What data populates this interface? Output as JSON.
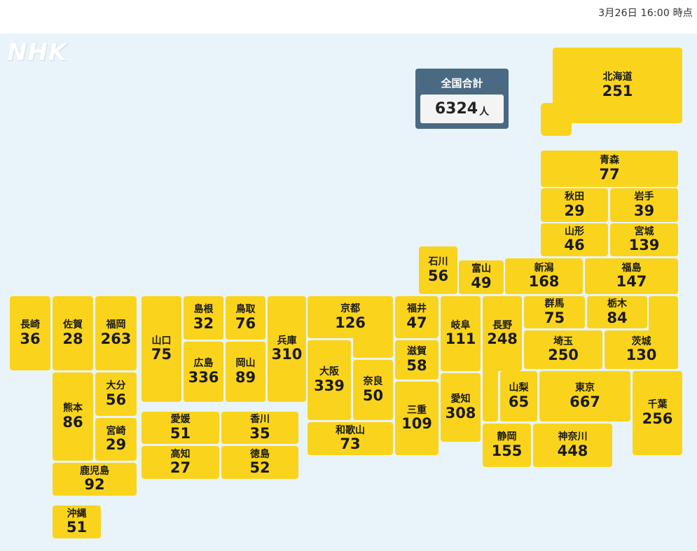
{
  "timestamp": "3月26日 16:00 時点",
  "logo": "NHK",
  "total": {
    "label": "全国合計",
    "value": "6324",
    "unit": "人"
  },
  "prefectures": [
    {
      "name": "北海道",
      "count": "251"
    },
    {
      "name": "青森",
      "count": "77"
    },
    {
      "name": "秋田",
      "count": "29"
    },
    {
      "name": "岩手",
      "count": "39"
    },
    {
      "name": "山形",
      "count": "46"
    },
    {
      "name": "宮城",
      "count": "139"
    },
    {
      "name": "石川",
      "count": "56"
    },
    {
      "name": "富山",
      "count": "49"
    },
    {
      "name": "新潟",
      "count": "168"
    },
    {
      "name": "福島",
      "count": "147"
    },
    {
      "name": "長崎",
      "count": "36"
    },
    {
      "name": "佐賀",
      "count": "28"
    },
    {
      "name": "福岡",
      "count": "263"
    },
    {
      "name": "山口",
      "count": "75"
    },
    {
      "name": "島根",
      "count": "32"
    },
    {
      "name": "鳥取",
      "count": "76"
    },
    {
      "name": "兵庫",
      "count": "310"
    },
    {
      "name": "京都",
      "count": "126"
    },
    {
      "name": "福井",
      "count": "47"
    },
    {
      "name": "岐阜",
      "count": "111"
    },
    {
      "name": "長野",
      "count": "248"
    },
    {
      "name": "群馬",
      "count": "75"
    },
    {
      "name": "栃木",
      "count": "84"
    },
    {
      "name": "埼玉",
      "count": "250"
    },
    {
      "name": "茨城",
      "count": "130"
    },
    {
      "name": "広島",
      "count": "336"
    },
    {
      "name": "岡山",
      "count": "89"
    },
    {
      "name": "大阪",
      "count": "339"
    },
    {
      "name": "奈良",
      "count": "50"
    },
    {
      "name": "滋賀",
      "count": "58"
    },
    {
      "name": "熊本",
      "count": "86"
    },
    {
      "name": "大分",
      "count": "56"
    },
    {
      "name": "宮崎",
      "count": "29"
    },
    {
      "name": "愛媛",
      "count": "51"
    },
    {
      "name": "香川",
      "count": "35"
    },
    {
      "name": "高知",
      "count": "27"
    },
    {
      "name": "徳島",
      "count": "52"
    },
    {
      "name": "三重",
      "count": "109"
    },
    {
      "name": "愛知",
      "count": "308"
    },
    {
      "name": "山梨",
      "count": "65"
    },
    {
      "name": "東京",
      "count": "667"
    },
    {
      "name": "千葉",
      "count": "256"
    },
    {
      "name": "和歌山",
      "count": "73"
    },
    {
      "name": "静岡",
      "count": "155"
    },
    {
      "name": "神奈川",
      "count": "448"
    },
    {
      "name": "鹿児島",
      "count": "92"
    },
    {
      "name": "沖縄",
      "count": "51"
    }
  ],
  "colors": {
    "tile": "#fad41c",
    "background": "#e8f4fa",
    "total_box": "#4a6a84"
  }
}
